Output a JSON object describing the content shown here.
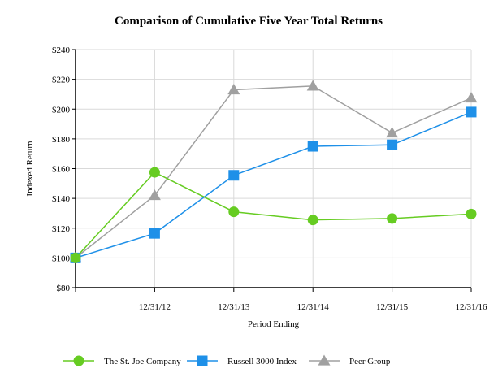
{
  "chart_data": {
    "type": "line",
    "title": "Comparison of Cumulative Five Year Total Returns",
    "xlabel": "Period Ending",
    "ylabel": "Indexed Return",
    "categories": [
      "",
      "12/31/12",
      "12/31/13",
      "12/31/14",
      "12/31/15",
      "12/31/16"
    ],
    "ylim": [
      80,
      240
    ],
    "yticks": [
      80,
      100,
      120,
      140,
      160,
      180,
      200,
      220,
      240
    ],
    "ytick_labels": [
      "$80",
      "$100",
      "$120",
      "$140",
      "$160",
      "$180",
      "$200",
      "$220",
      "$240"
    ],
    "grid": true,
    "legend_position": "bottom",
    "series": [
      {
        "name": "The St. Joe Company",
        "marker": "circle",
        "color": "#66cc22",
        "values": [
          100,
          157.5,
          131,
          125.5,
          126.5,
          129.5
        ]
      },
      {
        "name": "Russell 3000 Index",
        "marker": "square",
        "color": "#1e90e8",
        "values": [
          100,
          116.5,
          155.5,
          175,
          176,
          198
        ]
      },
      {
        "name": "Peer Group",
        "marker": "triangle",
        "color": "#a0a0a0",
        "values": [
          100,
          142,
          213,
          215.5,
          184,
          207.5
        ]
      }
    ]
  }
}
